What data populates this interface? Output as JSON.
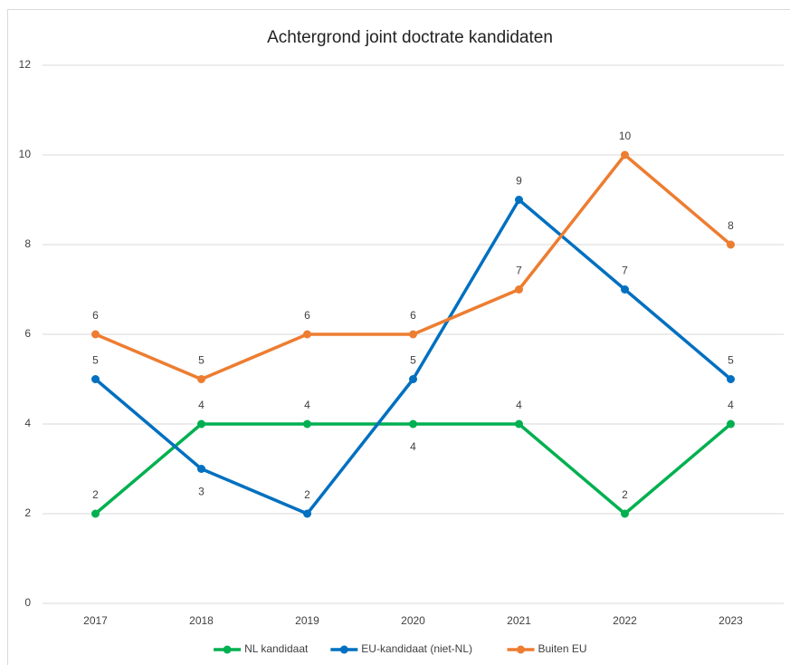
{
  "chart_data": {
    "type": "line",
    "title": "Achtergrond joint doctrate kandidaten",
    "categories": [
      "2017",
      "2018",
      "2019",
      "2020",
      "2021",
      "2022",
      "2023"
    ],
    "series": [
      {
        "name": "NL kandidaat",
        "color": "#00b050",
        "values": [
          2,
          4,
          4,
          4,
          4,
          2,
          4
        ]
      },
      {
        "name": "EU-kandidaat (niet-NL)",
        "color": "#0070c0",
        "values": [
          5,
          3,
          2,
          5,
          9,
          7,
          5
        ]
      },
      {
        "name": "Buiten EU",
        "color": "#ed7d31",
        "values": [
          6,
          5,
          6,
          6,
          7,
          10,
          8
        ]
      }
    ],
    "ylim": [
      0,
      12
    ],
    "yticks": [
      0,
      2,
      4,
      6,
      8,
      10,
      12
    ],
    "grid": true,
    "legend": "bottom"
  }
}
